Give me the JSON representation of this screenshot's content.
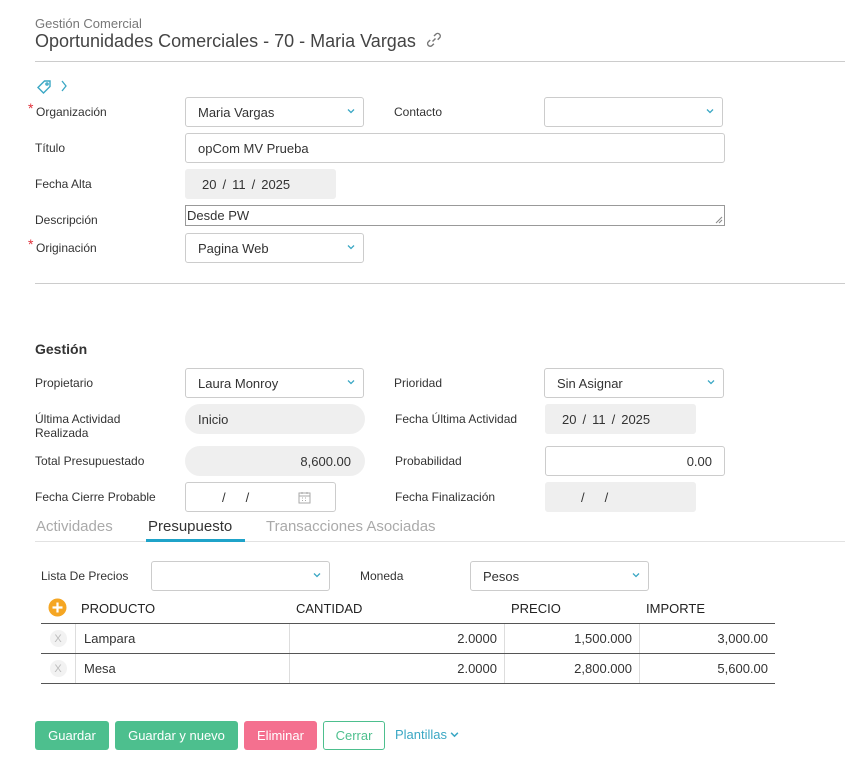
{
  "header": {
    "breadcrumb": "Gestión Comercial",
    "title": "Oportunidades Comerciales - 70 - Maria Vargas"
  },
  "form": {
    "organizacion": {
      "label": "Organización",
      "value": "Maria Vargas"
    },
    "contacto": {
      "label": "Contacto",
      "value": ""
    },
    "titulo": {
      "label": "Título",
      "value": "opCom MV Prueba"
    },
    "fecha_alta": {
      "label": "Fecha Alta",
      "day": "20",
      "month": "11",
      "year": "2025"
    },
    "descripcion": {
      "label": "Descripción",
      "value": "Desde PW"
    },
    "originacion": {
      "label": "Originación",
      "value": "Pagina Web"
    }
  },
  "gestion": {
    "title": "Gestión",
    "propietario": {
      "label": "Propietario",
      "value": "Laura Monroy"
    },
    "prioridad": {
      "label": "Prioridad",
      "value": "Sin Asignar"
    },
    "ultima_actividad": {
      "label_1": "Última Actividad",
      "label_2": "Realizada",
      "value": "Inicio"
    },
    "fecha_ultima_actividad": {
      "label": "Fecha Última Actividad",
      "day": "20",
      "month": "11",
      "year": "2025"
    },
    "total_presupuestado": {
      "label": "Total Presupuestado",
      "value": "8,600.00"
    },
    "probabilidad": {
      "label": "Probabilidad",
      "value": "0.00"
    },
    "fecha_cierre": {
      "label": "Fecha Cierre Probable"
    },
    "fecha_finalizacion": {
      "label": "Fecha Finalización"
    }
  },
  "tabs": [
    {
      "label": "Actividades"
    },
    {
      "label": "Presupuesto"
    },
    {
      "label": "Transacciones Asociadas"
    }
  ],
  "presupuesto": {
    "lista_precios": {
      "label": "Lista De Precios",
      "value": ""
    },
    "moneda": {
      "label": "Moneda",
      "value": "Pesos"
    },
    "columns": [
      "PRODUCTO",
      "CANTIDAD",
      "PRECIO",
      "IMPORTE"
    ],
    "remove_label": "X",
    "rows": [
      {
        "producto": "Lampara",
        "cantidad": "2.0000",
        "precio": "1,500.000",
        "importe": "3,000.00"
      },
      {
        "producto": "Mesa",
        "cantidad": "2.0000",
        "precio": "2,800.000",
        "importe": "5,600.00"
      }
    ]
  },
  "actions": {
    "guardar": "Guardar",
    "guardar_nuevo": "Guardar y nuevo",
    "eliminar": "Eliminar",
    "cerrar": "Cerrar",
    "plantillas": "Plantillas"
  },
  "colors": {
    "accent_green": "#4dbf8e",
    "danger_pink": "#f4708f",
    "link_teal": "#3aa7c4",
    "tab_underline": "#1fa3c9",
    "add_orange": "#f5a623"
  }
}
